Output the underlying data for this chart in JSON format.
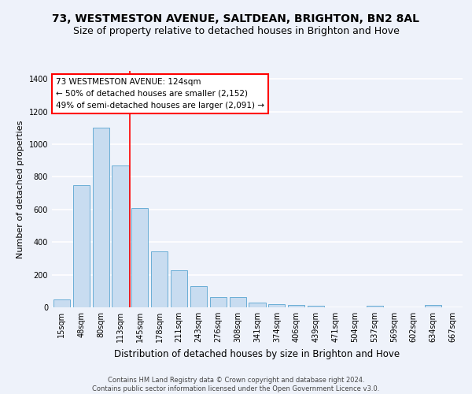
{
  "title": "73, WESTMESTON AVENUE, SALTDEAN, BRIGHTON, BN2 8AL",
  "subtitle": "Size of property relative to detached houses in Brighton and Hove",
  "xlabel": "Distribution of detached houses by size in Brighton and Hove",
  "ylabel": "Number of detached properties",
  "footnote1": "Contains HM Land Registry data © Crown copyright and database right 2024.",
  "footnote2": "Contains public sector information licensed under the Open Government Licence v3.0.",
  "categories": [
    "15sqm",
    "48sqm",
    "80sqm",
    "113sqm",
    "145sqm",
    "178sqm",
    "211sqm",
    "243sqm",
    "276sqm",
    "308sqm",
    "341sqm",
    "374sqm",
    "406sqm",
    "439sqm",
    "471sqm",
    "504sqm",
    "537sqm",
    "569sqm",
    "602sqm",
    "634sqm",
    "667sqm"
  ],
  "values": [
    50,
    750,
    1100,
    870,
    610,
    345,
    225,
    130,
    65,
    65,
    30,
    20,
    15,
    10,
    0,
    0,
    10,
    0,
    0,
    15,
    0
  ],
  "bar_color": "#c8dcf0",
  "bar_edge_color": "#6aaed6",
  "vline_color": "red",
  "vline_pos": 3.5,
  "annotation_text": "73 WESTMESTON AVENUE: 124sqm\n← 50% of detached houses are smaller (2,152)\n49% of semi-detached houses are larger (2,091) →",
  "annotation_box_color": "white",
  "annotation_box_edge": "red",
  "ylim": [
    0,
    1450
  ],
  "yticks": [
    0,
    200,
    400,
    600,
    800,
    1000,
    1200,
    1400
  ],
  "background_color": "#eef2fa",
  "grid_color": "white",
  "title_fontsize": 10,
  "subtitle_fontsize": 9,
  "ylabel_fontsize": 8,
  "xlabel_fontsize": 8.5,
  "tick_fontsize": 7,
  "annot_fontsize": 7.5,
  "footnote_fontsize": 6
}
